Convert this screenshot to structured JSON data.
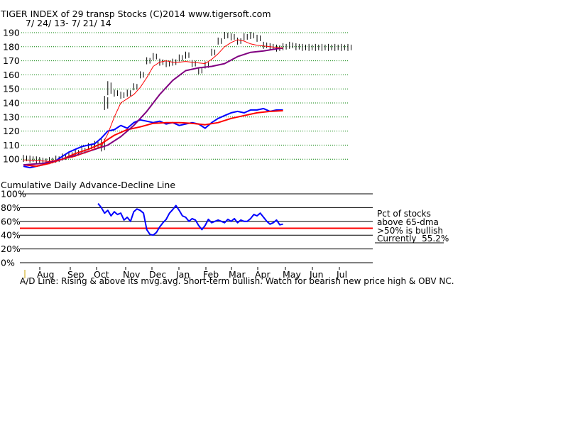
{
  "header": {
    "title": "TIGER INDEX of  29 transp Stocks  (C)2014  www.tigersoft.com",
    "date_range": "7/ 24/ 13- 7/ 21/ 14"
  },
  "colors": {
    "price_bars": "#000000",
    "ma_short": "#ff0000",
    "ma_long": "#800080",
    "ad_line": "#0000ff",
    "ad_ma": "#ff0000",
    "pct_line": "#0000ff",
    "bullish_line": "#ff0000",
    "grid_green": "#008000"
  },
  "lower_panel": {
    "title": "Cumulative Daily Advance-Decline Line",
    "legend_1": "Pct of stocks",
    "legend_2": "above 65-dma",
    "legend_3": ">50% is bullish",
    "currently_label": "Currently",
    "currently_value": "55.2%"
  },
  "footer": {
    "note": "A/D Line: Rising & above its mvg.avg. Short-term bullish. Watch for bearish new price high & OBV NC."
  },
  "chart_data": [
    {
      "type": "line",
      "name": "price-panel",
      "y_ticks": [
        "190",
        "180",
        "170",
        "160",
        "150",
        "140",
        "130",
        "120",
        "110",
        "100"
      ],
      "ylim": [
        92,
        192
      ],
      "grid": "dotted green at each 10",
      "x_months": [
        "Aug",
        "Sep",
        "Oct",
        "Nov",
        "Dec",
        "Jan",
        "Feb",
        "Mar",
        "Apr",
        "May",
        "Jun",
        "Jul"
      ],
      "series": [
        {
          "role": "price",
          "x": [
            0,
            2,
            4,
            6,
            8,
            10,
            12,
            14,
            16,
            18,
            20,
            22,
            24,
            25,
            26,
            28,
            30,
            32,
            34,
            36,
            38,
            40,
            42,
            44,
            46,
            48,
            50,
            52,
            54,
            56,
            58,
            60,
            62,
            64,
            66,
            68,
            70,
            72,
            74,
            76,
            78,
            80,
            82,
            84,
            86,
            88,
            90,
            92,
            94,
            96,
            98,
            100
          ],
          "values": [
            100.5,
            100,
            99.5,
            98.5,
            99,
            100,
            101.5,
            103,
            104.5,
            106,
            109,
            110.5,
            110.5,
            140,
            150.5,
            147,
            145.5,
            147,
            151.5,
            160,
            170,
            173,
            169,
            168,
            169,
            172,
            174,
            168,
            163,
            167,
            176,
            184,
            188,
            187,
            184,
            187,
            188,
            186,
            181,
            180,
            179,
            180,
            181,
            180,
            179.5,
            179.5,
            179.5,
            179.5,
            179.5,
            179.5,
            179.5,
            179.5
          ]
        },
        {
          "role": "ma-short",
          "x": [
            0,
            4,
            8,
            12,
            16,
            20,
            22,
            24,
            26,
            28,
            30,
            32,
            34,
            36,
            38,
            40,
            42,
            44,
            46,
            48,
            50,
            52,
            54,
            56,
            58,
            60,
            62,
            64,
            66,
            68,
            70,
            72,
            74,
            76,
            78,
            80
          ],
          "values": [
            99.5,
            99,
            98.5,
            100,
            102,
            105.5,
            107.5,
            109,
            118,
            130,
            140,
            143,
            146,
            151,
            158,
            166,
            169,
            170,
            169,
            169,
            169.5,
            169,
            168.5,
            168,
            171,
            175,
            180,
            183,
            185,
            184,
            182,
            181,
            180.5,
            180,
            179.5,
            179
          ]
        },
        {
          "role": "ma-long",
          "x": [
            0,
            6,
            12,
            18,
            22,
            26,
            30,
            34,
            38,
            42,
            46,
            50,
            54,
            58,
            62,
            66,
            70,
            74,
            78,
            80
          ],
          "values": [
            96,
            97,
            100,
            104,
            107,
            110,
            116,
            124,
            134,
            146,
            156,
            163,
            165,
            166,
            168,
            173,
            176,
            177,
            178.5,
            179
          ]
        },
        {
          "role": "ad-line",
          "x": [
            0,
            2,
            4,
            6,
            8,
            10,
            12,
            14,
            16,
            18,
            20,
            22,
            24,
            26,
            28,
            30,
            32,
            34,
            36,
            38,
            40,
            42,
            44,
            46,
            48,
            50,
            52,
            54,
            56,
            58,
            60,
            62,
            64,
            66,
            68,
            70,
            72,
            74,
            76,
            78,
            80
          ],
          "values": [
            95,
            94,
            95,
            96,
            98,
            99,
            102,
            105,
            107,
            109,
            110,
            111,
            115,
            120,
            121,
            124,
            122,
            126,
            128,
            127,
            126,
            127,
            125,
            126,
            124,
            125,
            126,
            125,
            122,
            126,
            129,
            131,
            133,
            134,
            133,
            135,
            135,
            136,
            134,
            135,
            135
          ]
        },
        {
          "role": "ad-ma",
          "x": [
            0,
            4,
            8,
            12,
            16,
            20,
            24,
            28,
            32,
            36,
            40,
            44,
            48,
            52,
            56,
            60,
            64,
            68,
            72,
            76,
            80
          ],
          "values": [
            96,
            95,
            97,
            100,
            104,
            107,
            111,
            117,
            121,
            123,
            125.5,
            126,
            126,
            125.5,
            124.5,
            126,
            129,
            131,
            133,
            134,
            134.5
          ]
        }
      ]
    },
    {
      "type": "line",
      "name": "pct-above-65dma",
      "title": "Cumulative Daily Advance-Decline Line",
      "y_ticks": [
        "100%",
        "80%",
        "60%",
        "40%",
        "20%",
        "0%"
      ],
      "ylim": [
        0,
        100
      ],
      "reference_line": 50,
      "x_months": [
        "Aug",
        "Sep",
        "Oct",
        "Nov",
        "Dec",
        "Jan",
        "Feb",
        "Mar",
        "Apr",
        "May",
        "Jun",
        "Jul"
      ],
      "series": [
        {
          "role": "pct",
          "x": [
            23,
            24,
            25,
            26,
            27,
            28,
            29,
            30,
            31,
            32,
            33,
            34,
            35,
            36,
            37,
            38,
            39,
            40,
            41,
            42,
            43,
            44,
            45,
            46,
            47,
            48,
            49,
            50,
            51,
            52,
            53,
            54,
            55,
            56,
            57,
            58,
            59,
            60,
            61,
            62,
            63,
            64,
            65,
            66,
            67,
            68,
            69,
            70,
            71,
            72,
            73,
            74,
            75,
            76,
            77,
            78,
            79,
            80
          ],
          "values": [
            86,
            80,
            72,
            76,
            68,
            74,
            70,
            72,
            62,
            66,
            60,
            74,
            78,
            76,
            72,
            48,
            41,
            40,
            44,
            52,
            58,
            63,
            72,
            77,
            83,
            76,
            68,
            66,
            60,
            64,
            62,
            54,
            48,
            54,
            63,
            58,
            60,
            62,
            60,
            58,
            63,
            60,
            64,
            58,
            62,
            60,
            60,
            64,
            70,
            68,
            72,
            66,
            60,
            56,
            58,
            62,
            55,
            56
          ]
        },
        {
          "role": "bullish-threshold",
          "value": 50
        }
      ],
      "current_value": 55.2
    }
  ]
}
